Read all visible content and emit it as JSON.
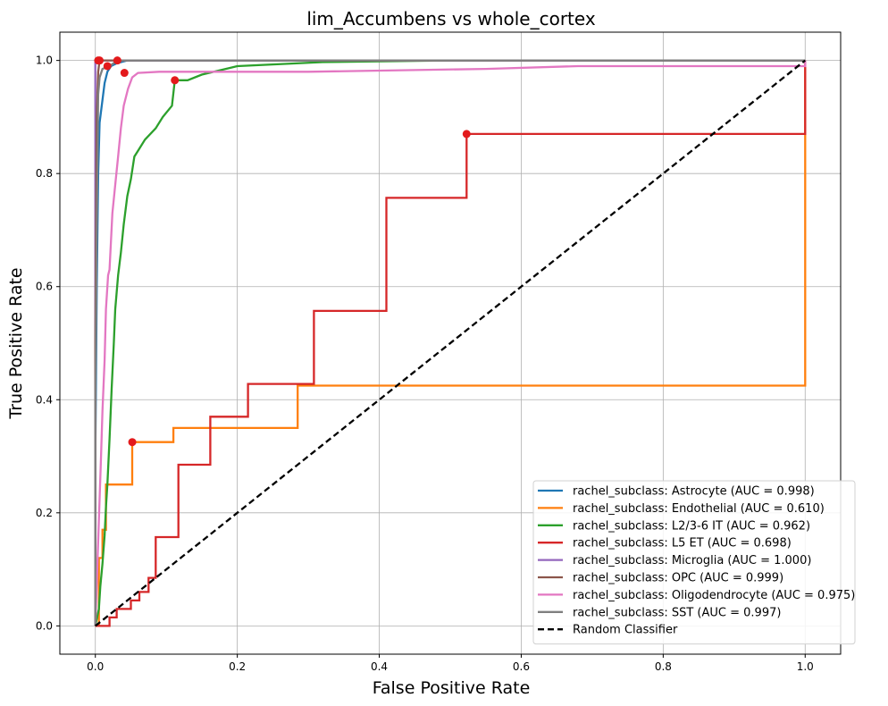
{
  "chart_data": {
    "type": "line",
    "title": "lim_Accumbens vs whole_cortex",
    "xlabel": "False Positive Rate",
    "ylabel": "True Positive Rate",
    "xlim": [
      -0.05,
      1.05
    ],
    "ylim": [
      -0.05,
      1.05
    ],
    "xticks": [
      0.0,
      0.2,
      0.4,
      0.6,
      0.8,
      1.0
    ],
    "yticks": [
      0.0,
      0.2,
      0.4,
      0.6,
      0.8,
      1.0
    ],
    "xtick_labels": [
      "0.0",
      "0.2",
      "0.4",
      "0.6",
      "0.8",
      "1.0"
    ],
    "ytick_labels": [
      "0.0",
      "0.2",
      "0.4",
      "0.6",
      "0.8",
      "1.0"
    ],
    "grid": true,
    "legend_position": "lower-right",
    "marker_color": "#e31a1c",
    "series": [
      {
        "name": "rachel_subclass: Astrocyte (AUC = 0.998)",
        "color": "#1f77b4",
        "points": [
          [
            0,
            0
          ],
          [
            0,
            0.3
          ],
          [
            0.002,
            0.6
          ],
          [
            0.004,
            0.8
          ],
          [
            0.006,
            0.89
          ],
          [
            0.01,
            0.93
          ],
          [
            0.013,
            0.96
          ],
          [
            0.017,
            0.98
          ],
          [
            0.022,
            0.99
          ],
          [
            0.03,
            0.995
          ],
          [
            0.045,
            1.0
          ],
          [
            1.0,
            1.0
          ]
        ],
        "marker": [
          0.017,
          0.99
        ]
      },
      {
        "name": "rachel_subclass: Endothelial (AUC = 0.610)",
        "color": "#ff7f0e",
        "points": [
          [
            0,
            0
          ],
          [
            0.005,
            0.0
          ],
          [
            0.005,
            0.12
          ],
          [
            0.01,
            0.12
          ],
          [
            0.01,
            0.17
          ],
          [
            0.015,
            0.17
          ],
          [
            0.015,
            0.25
          ],
          [
            0.052,
            0.25
          ],
          [
            0.052,
            0.325
          ],
          [
            0.11,
            0.325
          ],
          [
            0.11,
            0.35
          ],
          [
            0.285,
            0.35
          ],
          [
            0.285,
            0.425
          ],
          [
            1.0,
            0.425
          ],
          [
            1.0,
            1.0
          ]
        ],
        "marker": [
          0.052,
          0.325
        ]
      },
      {
        "name": "rachel_subclass: L2/3-6 IT (AUC = 0.962)",
        "color": "#2ca02c",
        "points": [
          [
            0,
            0
          ],
          [
            0.005,
            0.03
          ],
          [
            0.007,
            0.07
          ],
          [
            0.01,
            0.11
          ],
          [
            0.013,
            0.16
          ],
          [
            0.015,
            0.21
          ],
          [
            0.017,
            0.25
          ],
          [
            0.02,
            0.33
          ],
          [
            0.023,
            0.42
          ],
          [
            0.026,
            0.5
          ],
          [
            0.028,
            0.56
          ],
          [
            0.032,
            0.62
          ],
          [
            0.036,
            0.66
          ],
          [
            0.04,
            0.71
          ],
          [
            0.045,
            0.76
          ],
          [
            0.05,
            0.79
          ],
          [
            0.055,
            0.83
          ],
          [
            0.06,
            0.84
          ],
          [
            0.07,
            0.86
          ],
          [
            0.085,
            0.88
          ],
          [
            0.095,
            0.9
          ],
          [
            0.108,
            0.92
          ],
          [
            0.112,
            0.965
          ],
          [
            0.13,
            0.965
          ],
          [
            0.15,
            0.975
          ],
          [
            0.2,
            0.99
          ],
          [
            0.32,
            0.997
          ],
          [
            0.5,
            1.0
          ],
          [
            1.0,
            1.0
          ]
        ],
        "marker": [
          0.112,
          0.965
        ]
      },
      {
        "name": "rachel_subclass: L5 ET (AUC = 0.698)",
        "color": "#d62728",
        "points": [
          [
            0,
            0
          ],
          [
            0.02,
            0.0
          ],
          [
            0.02,
            0.015
          ],
          [
            0.03,
            0.015
          ],
          [
            0.03,
            0.03
          ],
          [
            0.05,
            0.03
          ],
          [
            0.05,
            0.045
          ],
          [
            0.062,
            0.045
          ],
          [
            0.062,
            0.06
          ],
          [
            0.075,
            0.06
          ],
          [
            0.075,
            0.085
          ],
          [
            0.085,
            0.085
          ],
          [
            0.085,
            0.157
          ],
          [
            0.117,
            0.157
          ],
          [
            0.117,
            0.285
          ],
          [
            0.162,
            0.285
          ],
          [
            0.162,
            0.37
          ],
          [
            0.215,
            0.37
          ],
          [
            0.215,
            0.428
          ],
          [
            0.308,
            0.428
          ],
          [
            0.308,
            0.557
          ],
          [
            0.41,
            0.557
          ],
          [
            0.41,
            0.757
          ],
          [
            0.523,
            0.757
          ],
          [
            0.523,
            0.87
          ],
          [
            1.0,
            0.87
          ],
          [
            1.0,
            1.0
          ]
        ],
        "marker": [
          0.523,
          0.87
        ]
      },
      {
        "name": "rachel_subclass: Microglia (AUC = 1.000)",
        "color": "#9467bd",
        "points": [
          [
            0,
            0
          ],
          [
            0,
            1.0
          ],
          [
            1.0,
            1.0
          ]
        ],
        "marker": [
          0.004,
          1.0
        ]
      },
      {
        "name": "rachel_subclass: OPC (AUC = 0.999)",
        "color": "#8c564b",
        "points": [
          [
            0,
            0
          ],
          [
            0,
            0.5
          ],
          [
            0.002,
            0.9
          ],
          [
            0.004,
            0.98
          ],
          [
            0.006,
            1.0
          ],
          [
            1.0,
            1.0
          ]
        ],
        "marker": [
          0.006,
          1.0
        ]
      },
      {
        "name": "rachel_subclass: Oligodendrocyte (AUC = 0.975)",
        "color": "#e377c2",
        "points": [
          [
            0,
            0
          ],
          [
            0.004,
            0.15
          ],
          [
            0.008,
            0.3
          ],
          [
            0.01,
            0.38
          ],
          [
            0.013,
            0.47
          ],
          [
            0.015,
            0.56
          ],
          [
            0.018,
            0.62
          ],
          [
            0.02,
            0.63
          ],
          [
            0.022,
            0.68
          ],
          [
            0.024,
            0.73
          ],
          [
            0.028,
            0.78
          ],
          [
            0.032,
            0.83
          ],
          [
            0.036,
            0.88
          ],
          [
            0.04,
            0.92
          ],
          [
            0.046,
            0.95
          ],
          [
            0.052,
            0.97
          ],
          [
            0.06,
            0.978
          ],
          [
            0.09,
            0.98
          ],
          [
            0.3,
            0.98
          ],
          [
            0.55,
            0.985
          ],
          [
            0.68,
            0.99
          ],
          [
            1.0,
            0.99
          ],
          [
            1.0,
            1.0
          ]
        ],
        "marker": [
          0.041,
          0.978
        ]
      },
      {
        "name": "rachel_subclass: SST (AUC = 0.997)",
        "color": "#7f7f7f",
        "points": [
          [
            0,
            0
          ],
          [
            0,
            0.4
          ],
          [
            0.002,
            0.7
          ],
          [
            0.004,
            0.94
          ],
          [
            0.006,
            0.97
          ],
          [
            0.01,
            0.985
          ],
          [
            0.02,
            0.99
          ],
          [
            0.031,
            1.0
          ],
          [
            1.0,
            1.0
          ]
        ],
        "marker": [
          0.031,
          1.0
        ]
      }
    ],
    "baseline": {
      "name": "Random Classifier",
      "color": "#000000",
      "points": [
        [
          0,
          0
        ],
        [
          1,
          1
        ]
      ]
    }
  }
}
